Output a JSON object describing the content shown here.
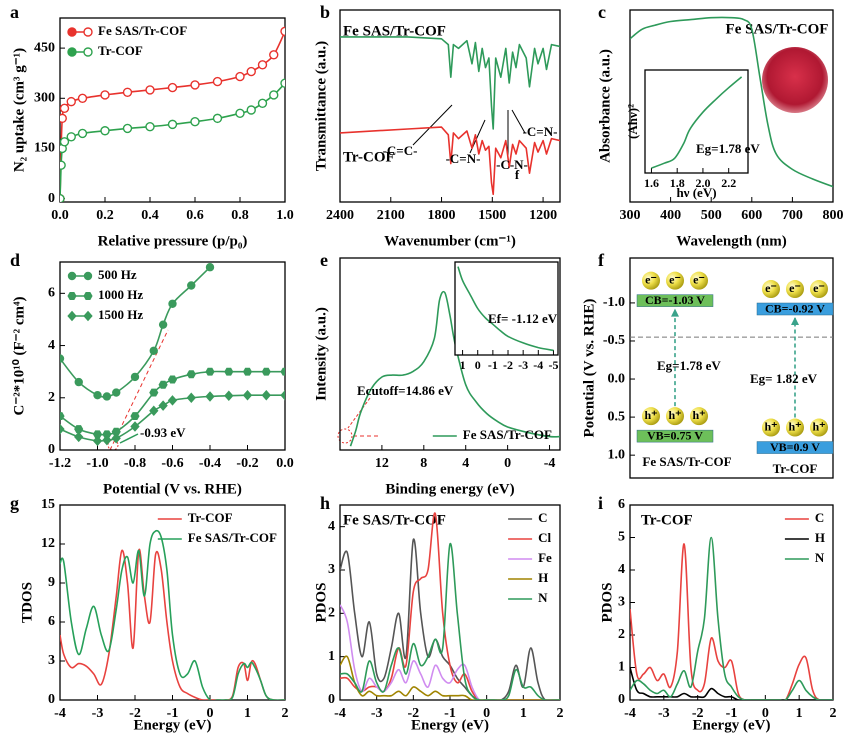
{
  "chart_data": [
    {
      "type": "line",
      "label": "a",
      "xlabel": "Relative pressure (p/p₀)",
      "ylabel": "N₂ uptake (cm³ g⁻¹)",
      "xlim": [
        0,
        1
      ],
      "xticks": [
        {
          "value": 0,
          "label": "0.0"
        },
        0.2,
        0.4,
        0.6,
        0.8,
        {
          "value": 1,
          "label": "1.0"
        }
      ],
      "ylim": [
        -10,
        540
      ],
      "yticks": [
        0,
        150,
        300,
        450
      ],
      "legend": "upper left",
      "x": [
        0,
        0.005,
        0.01,
        0.02,
        0.05,
        0.1,
        0.2,
        0.3,
        0.4,
        0.5,
        0.6,
        0.7,
        0.8,
        0.85,
        0.9,
        0.95,
        1.0
      ],
      "series": [
        {
          "name": "Fe SAS/Tr-COF",
          "color": "#e8322d",
          "marker": "open-circle",
          "values": [
            0,
            150,
            240,
            270,
            290,
            300,
            310,
            318,
            325,
            332,
            340,
            350,
            365,
            380,
            400,
            430,
            500
          ]
        },
        {
          "name": "Tr-COF",
          "color": "#2ea24e",
          "marker": "open-circle",
          "values": [
            0,
            100,
            150,
            170,
            185,
            195,
            203,
            210,
            215,
            222,
            230,
            240,
            255,
            265,
            285,
            310,
            345
          ]
        }
      ]
    },
    {
      "type": "line",
      "label": "b",
      "xlabel": "Wavenumber (cm⁻¹)",
      "ylabel": "Transmittance (a.u.)",
      "xlim": [
        2400,
        1100
      ],
      "xticks": [
        2400,
        2100,
        1800,
        1500,
        1200
      ],
      "ylim": [
        0,
        10
      ],
      "legend": "direct",
      "annotations": [
        "-C=C-",
        "-C=N-",
        "-C-N-",
        "-C=N-",
        "f"
      ],
      "x": [
        2400,
        2000,
        1800,
        1760,
        1745,
        1730,
        1700,
        1650,
        1620,
        1600,
        1580,
        1560,
        1540,
        1520,
        1505,
        1495,
        1480,
        1450,
        1420,
        1400,
        1380,
        1360,
        1340,
        1300,
        1280,
        1250,
        1230,
        1200,
        1180,
        1150,
        1100
      ],
      "series": [
        {
          "name": "Fe SAS/Tr-COF",
          "color": "#2e9a5a",
          "values": [
            8.6,
            8.6,
            8.5,
            8.2,
            6.5,
            8.2,
            8.0,
            8.4,
            7.2,
            8.3,
            6.8,
            8.0,
            7.0,
            7.5,
            5.0,
            3.8,
            7.5,
            6.5,
            8.0,
            6.2,
            7.8,
            7.0,
            8.2,
            7.5,
            6.0,
            8.0,
            7.2,
            8.0,
            6.9,
            8.2,
            8.1
          ]
        },
        {
          "name": "Tr-COF",
          "color": "#e8322d",
          "values": [
            3.6,
            3.8,
            3.9,
            3.5,
            2.0,
            3.6,
            3.3,
            3.7,
            2.8,
            3.5,
            2.5,
            3.2,
            2.7,
            2.9,
            1.0,
            0.4,
            2.8,
            2.3,
            3.2,
            1.8,
            3.0,
            2.5,
            3.2,
            2.8,
            1.5,
            3.1,
            2.6,
            3.2,
            2.5,
            3.3,
            3.2
          ]
        }
      ]
    },
    {
      "type": "line",
      "label": "c",
      "title": "Fe SAS/Tr-COF",
      "xlabel": "Wavelength (nm)",
      "ylabel": "Absorbance (a.u.)",
      "xlim": [
        300,
        800
      ],
      "xticks": [
        300,
        400,
        500,
        600,
        700,
        800
      ],
      "ylim": [
        0,
        10
      ],
      "x": [
        300,
        330,
        360,
        400,
        450,
        500,
        550,
        580,
        600,
        620,
        640,
        660,
        700,
        750,
        800
      ],
      "series": [
        {
          "color": "#2e9a5a",
          "values": [
            8.5,
            9.0,
            9.2,
            9.4,
            9.5,
            9.6,
            9.6,
            9.5,
            9.0,
            6.5,
            4.0,
            2.5,
            1.7,
            1.2,
            0.8
          ]
        }
      ]
    },
    {
      "type": "line",
      "xlabel": "hν (eV)",
      "ylabel": "(Ahν)²",
      "annotations": [
        "Eg=1.78 eV"
      ],
      "xlim": [
        1.55,
        2.35
      ],
      "xticks": [
        1.6,
        1.8,
        {
          "value": 2,
          "label": "2.0"
        },
        2.2
      ],
      "ylim": [
        0,
        1.05
      ],
      "x": [
        1.6,
        1.7,
        1.78,
        1.85,
        1.9,
        2.0,
        2.1,
        2.2,
        2.3
      ],
      "series": [
        {
          "color": "#2e9a5a",
          "values": [
            0.05,
            0.1,
            0.15,
            0.3,
            0.45,
            0.62,
            0.75,
            0.87,
            0.98
          ]
        }
      ]
    },
    {
      "type": "line",
      "label": "d",
      "xlabel": "Potential (V vs. RHE)",
      "ylabel": "C⁻²*10¹⁰ (F⁻² cm⁴)",
      "annotations": [
        "-0.93 eV"
      ],
      "xlim": [
        -1.2,
        0
      ],
      "xticks": [
        -1.2,
        {
          "value": -1,
          "label": "-1.0"
        },
        -0.8,
        -0.6,
        -0.4,
        -0.2,
        {
          "value": 0,
          "label": "0.0"
        }
      ],
      "ylim": [
        0,
        7.2
      ],
      "yticks": [
        0,
        2,
        4,
        6
      ],
      "legend": "upper left",
      "x": [
        -1.2,
        -1.1,
        -1.0,
        -0.95,
        -0.9,
        -0.8,
        -0.7,
        -0.65,
        -0.6,
        -0.5,
        -0.4,
        -0.3,
        -0.2,
        -0.1,
        0
      ],
      "series": [
        {
          "name": "500 Hz",
          "color": "#3a9a5c",
          "marker": "circle",
          "values": [
            3.5,
            2.6,
            2.1,
            2.05,
            2.2,
            2.8,
            3.8,
            4.8,
            5.6,
            6.3,
            7.0,
            null,
            null,
            null,
            null
          ]
        },
        {
          "name": "1000 Hz",
          "color": "#3a9a5c",
          "marker": "hexagon",
          "values": [
            1.3,
            0.8,
            0.6,
            0.6,
            0.7,
            1.3,
            2.2,
            2.5,
            2.7,
            2.9,
            3.0,
            3.0,
            3.0,
            3.0,
            3.0
          ]
        },
        {
          "name": "1500 Hz",
          "color": "#3a9a5c",
          "marker": "diamond",
          "values": [
            0.8,
            0.5,
            0.35,
            0.38,
            0.45,
            0.9,
            1.5,
            1.7,
            1.9,
            2.0,
            2.05,
            2.08,
            2.1,
            2.1,
            2.1
          ]
        }
      ]
    },
    {
      "type": "line",
      "label": "e",
      "xlabel": "Binding energy (eV)",
      "ylabel": "Intensity (a.u.)",
      "annotations": [
        "Ecutoff=14.86 eV"
      ],
      "xlim": [
        16,
        -5
      ],
      "xticks": [
        12,
        8,
        4,
        0,
        -4
      ],
      "ylim": [
        0,
        10
      ],
      "legend": "lower right",
      "x": [
        15,
        14.5,
        14,
        13,
        12,
        11,
        10,
        9,
        8,
        7,
        6.5,
        6,
        5.5,
        5,
        4,
        3,
        2,
        1,
        0,
        -2,
        -4,
        -5
      ],
      "series": [
        {
          "name": "Fe SAS/Tr-COF",
          "color": "#2e9a5a",
          "values": [
            0.2,
            1.0,
            2.0,
            3.2,
            3.8,
            3.9,
            3.9,
            4.1,
            4.6,
            5.8,
            7.8,
            8.2,
            7.0,
            5.5,
            3.4,
            2.5,
            1.9,
            1.5,
            1.2,
            0.9,
            0.7,
            0.7
          ]
        }
      ]
    },
    {
      "type": "line",
      "annotations": [
        "Ef= -1.12 eV"
      ],
      "xlim": [
        1.5,
        -5.3
      ],
      "xticks": [
        1,
        0,
        -1,
        -2,
        -3,
        -4,
        -5
      ],
      "ylim": [
        0,
        10
      ],
      "x": [
        1.3,
        1,
        0.5,
        0,
        -0.5,
        -1,
        -1.5,
        -2,
        -3,
        -4,
        -5
      ],
      "series": [
        {
          "color": "#2e9a5a",
          "values": [
            9.5,
            8,
            6.5,
            5,
            4,
            3.3,
            2.6,
            2.0,
            1.3,
            0.8,
            0.5
          ]
        }
      ]
    },
    {
      "type": "band",
      "label": "f",
      "ylabel": "Potential (V vs. RHE)",
      "ylim": [
        1.3,
        -1.59
      ],
      "yticks": [
        {
          "value": -1,
          "label": "-1.0"
        },
        -0.5,
        {
          "value": 0,
          "label": "0.0"
        },
        0.5,
        {
          "value": 1,
          "label": "1.0"
        }
      ],
      "reference_line": -0.55,
      "electron": "e⁻",
      "hole": "h⁺",
      "materials": [
        {
          "name": "Fe SAS/Tr-COF",
          "color": "#6dbf5a",
          "cb": -1.03,
          "cb_label": "CB=-1.03 V",
          "vb": 0.75,
          "vb_label": "VB=0.75 V",
          "eg": 1.78,
          "eg_label": "Eg=1.78 eV"
        },
        {
          "name": "Tr-COF",
          "color": "#3a9ede",
          "cb": -0.92,
          "cb_label": "CB=-0.92 V",
          "vb": 0.9,
          "vb_label": "VB=0.9 V",
          "eg": 1.82,
          "eg_label": "Eg= 1.82 eV"
        }
      ]
    },
    {
      "type": "line",
      "label": "g",
      "xlabel": "Energy (eV)",
      "ylabel": "TDOS",
      "xlim": [
        -4,
        2
      ],
      "xticks": [
        -4,
        -3,
        -2,
        -1,
        0,
        1,
        2
      ],
      "ylim": [
        0,
        15
      ],
      "yticks": [
        0,
        3,
        6,
        9,
        12,
        15
      ],
      "legend": "upper right",
      "x": [
        -4.0,
        -3.9,
        -3.7,
        -3.5,
        -3.3,
        -3.1,
        -2.9,
        -2.7,
        -2.5,
        -2.35,
        -2.2,
        -2.05,
        -1.9,
        -1.75,
        -1.6,
        -1.45,
        -1.3,
        -1.15,
        -1.0,
        -0.8,
        -0.6,
        -0.4,
        -0.2,
        0,
        0.2,
        0.4,
        0.6,
        0.75,
        0.9,
        1.0,
        1.1,
        1.2,
        1.35,
        1.5,
        1.7,
        2.0
      ],
      "series": [
        {
          "name": "Tr-COF",
          "color": "#e8423f",
          "values": [
            5.0,
            3.5,
            2.5,
            2.8,
            2.6,
            2.0,
            1.2,
            3.5,
            8.0,
            11.5,
            9.0,
            4.0,
            11.5,
            8.0,
            6.0,
            11.2,
            10.0,
            6.0,
            3.0,
            1.0,
            0.5,
            0.2,
            0,
            0,
            0,
            0,
            0.3,
            2.5,
            2.8,
            1.5,
            2.9,
            2.8,
            1.5,
            0.3,
            0,
            0
          ]
        },
        {
          "name": "Fe SAS/Tr-COF",
          "color": "#27a05a",
          "values": [
            10.5,
            10.6,
            6.0,
            3.5,
            5.5,
            7.2,
            5.0,
            3.8,
            7.0,
            10.0,
            11.0,
            9.0,
            11.5,
            8.0,
            12.0,
            13.0,
            12.5,
            10.0,
            5.0,
            2.0,
            2.0,
            3.0,
            1.0,
            0,
            0,
            0,
            0.2,
            2.0,
            2.8,
            2.5,
            2.9,
            2.5,
            1.5,
            0.3,
            0,
            0
          ]
        }
      ]
    },
    {
      "type": "line",
      "label": "h",
      "title": "Fe SAS/Tr-COF",
      "xlabel": "Energy (eV)",
      "ylabel": "PDOS",
      "xlim": [
        -4,
        2
      ],
      "xticks": [
        -4,
        -3,
        -2,
        -1,
        0,
        1,
        2
      ],
      "ylim": [
        0,
        4.5
      ],
      "yticks": [
        0,
        1,
        2,
        3,
        4
      ],
      "legend": "upper right",
      "x": [
        -4.0,
        -3.8,
        -3.6,
        -3.4,
        -3.2,
        -3.0,
        -2.8,
        -2.6,
        -2.4,
        -2.2,
        -2.0,
        -1.8,
        -1.6,
        -1.4,
        -1.2,
        -1.0,
        -0.8,
        -0.6,
        -0.4,
        -0.2,
        0,
        0.2,
        0.4,
        0.6,
        0.8,
        1.0,
        1.2,
        1.4,
        1.6,
        2.0
      ],
      "series": [
        {
          "name": "C",
          "color": "#555555",
          "values": [
            3.0,
            3.4,
            2.0,
            1.0,
            1.8,
            0.6,
            0.5,
            1.2,
            2.0,
            1.0,
            3.7,
            2.0,
            1.0,
            1.4,
            1.0,
            0.8,
            0.5,
            0.3,
            0.1,
            0,
            0,
            0,
            0,
            0.2,
            0.8,
            0.3,
            1.2,
            0.4,
            0,
            0
          ]
        },
        {
          "name": "Cl",
          "color": "#e8423f",
          "values": [
            0.5,
            0.5,
            0.3,
            0.2,
            0.3,
            0.3,
            0.2,
            0.5,
            1.2,
            0.8,
            2.5,
            2.8,
            3.0,
            4.3,
            2.0,
            0.8,
            0.4,
            0.6,
            0.2,
            0,
            0,
            0,
            0,
            0,
            0,
            0,
            0,
            0,
            0,
            0
          ]
        },
        {
          "name": "Fe",
          "color": "#d08cf0",
          "values": [
            2.2,
            1.8,
            0.7,
            0.2,
            0.5,
            0.3,
            0.2,
            0.4,
            0.7,
            0.4,
            0.9,
            0.6,
            0.3,
            0.8,
            0.5,
            0.4,
            0.7,
            0.8,
            0.3,
            0,
            0,
            0,
            0,
            0,
            0,
            0,
            0,
            0,
            0,
            0
          ]
        },
        {
          "name": "H",
          "color": "#a08400",
          "values": [
            0.8,
            1.0,
            0.4,
            0.1,
            0.2,
            0.1,
            0.1,
            0.1,
            0.2,
            0.1,
            0.3,
            0.2,
            0.1,
            0.2,
            0.1,
            0.1,
            0.1,
            0.1,
            0,
            0,
            0,
            0,
            0,
            0,
            0,
            0,
            0,
            0,
            0,
            0
          ]
        },
        {
          "name": "N",
          "color": "#2e9a5a",
          "values": [
            0.6,
            0.6,
            0.4,
            0.2,
            0.9,
            0.4,
            0.2,
            0.8,
            1.2,
            0.6,
            1.3,
            0.8,
            1.0,
            1.4,
            1.2,
            3.6,
            2.0,
            0.5,
            0.1,
            0,
            0,
            0,
            0,
            0.1,
            0.7,
            0.3,
            0.3,
            0.1,
            0,
            0
          ]
        }
      ]
    },
    {
      "type": "line",
      "label": "i",
      "title": "Tr-COF",
      "xlabel": "Energy (eV)",
      "ylabel": "PDOS",
      "xlim": [
        -4,
        2
      ],
      "xticks": [
        -4,
        -3,
        -2,
        -1,
        0,
        1,
        2
      ],
      "ylim": [
        0,
        6
      ],
      "yticks": [
        0,
        1,
        2,
        3,
        4,
        5,
        6
      ],
      "legend": "upper right",
      "x": [
        -4.0,
        -3.8,
        -3.6,
        -3.4,
        -3.2,
        -3.0,
        -2.8,
        -2.6,
        -2.4,
        -2.2,
        -2.0,
        -1.8,
        -1.6,
        -1.4,
        -1.2,
        -1.0,
        -0.8,
        -0.6,
        -0.4,
        -0.2,
        0,
        0.2,
        0.4,
        0.6,
        0.8,
        1.0,
        1.2,
        1.4,
        1.6,
        2.0
      ],
      "series": [
        {
          "name": "C",
          "color": "#e8423f",
          "values": [
            2.8,
            0.8,
            0.8,
            1.0,
            0.6,
            0.8,
            0.4,
            1.5,
            4.8,
            1.0,
            0.3,
            0.5,
            1.9,
            1.2,
            1.0,
            1.2,
            0.2,
            0,
            0,
            0,
            0,
            0,
            0,
            0,
            0.5,
            1.1,
            1.3,
            0.3,
            0,
            0
          ]
        },
        {
          "name": "H",
          "color": "#000000",
          "values": [
            1.0,
            0.3,
            0.2,
            0.1,
            0.1,
            0.1,
            0.1,
            0.1,
            0.2,
            0.1,
            0.1,
            0.1,
            0.35,
            0.2,
            0.1,
            0.1,
            0,
            0,
            0,
            0,
            0,
            0,
            0,
            0,
            0,
            0,
            0,
            0,
            0,
            0
          ]
        },
        {
          "name": "N",
          "color": "#2e9a5a",
          "values": [
            0.3,
            0.6,
            0.5,
            0.3,
            0.2,
            0.3,
            0.1,
            0.5,
            0.9,
            0.4,
            1.5,
            2.5,
            5.0,
            2.5,
            0.8,
            0.4,
            0.1,
            0,
            0,
            0,
            0,
            0,
            0,
            0,
            0.3,
            0.6,
            0.3,
            0.1,
            0,
            0
          ]
        }
      ]
    }
  ]
}
